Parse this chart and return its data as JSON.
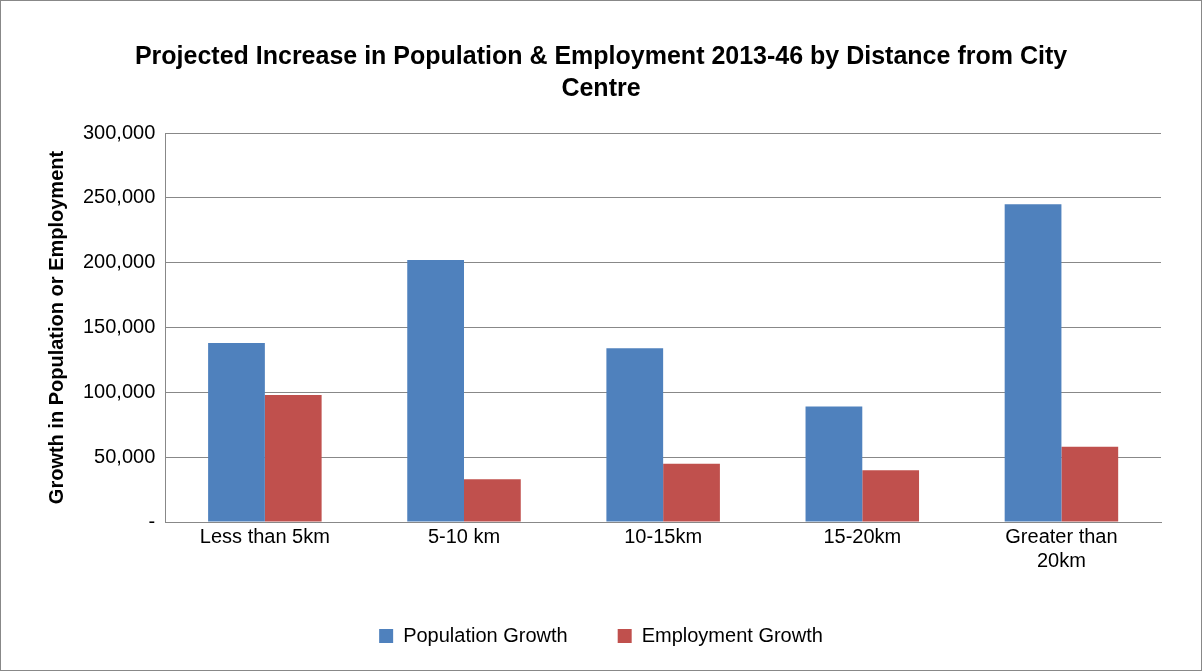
{
  "chart_data": {
    "type": "bar",
    "title": "Projected Increase in Population & Employment 2013-46 by Distance from City Centre",
    "ylabel": "Growth in Population or Employment",
    "categories": [
      "Less than 5km",
      "5-10 km",
      "10-15km",
      "15-20km",
      "Greater than 20km"
    ],
    "series": [
      {
        "name": "Population Growth",
        "color": "#4f81bd",
        "values": [
          138000,
          202000,
          134000,
          89000,
          245000
        ]
      },
      {
        "name": "Employment Growth",
        "color": "#c0504d",
        "values": [
          98000,
          33000,
          45000,
          40000,
          58000
        ]
      }
    ],
    "ylim": [
      0,
      300000
    ],
    "yticks": [
      {
        "value": 0,
        "label": "-"
      },
      {
        "value": 50000,
        "label": "50,000"
      },
      {
        "value": 100000,
        "label": "100,000"
      },
      {
        "value": 150000,
        "label": "150,000"
      },
      {
        "value": 200000,
        "label": "200,000"
      },
      {
        "value": 250000,
        "label": "250,000"
      },
      {
        "value": 300000,
        "label": "300,000"
      }
    ],
    "grid": "y",
    "legend": "bottom"
  }
}
